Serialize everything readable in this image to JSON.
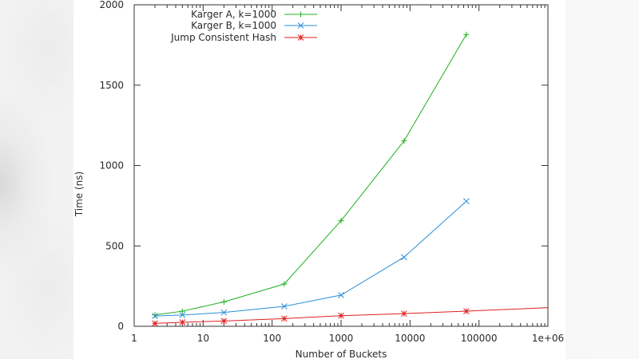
{
  "chart_data": {
    "type": "line",
    "title": "",
    "xlabel": "Number of Buckets",
    "ylabel": "Time (ns)",
    "xscale": "log",
    "xlim": [
      1,
      1000000
    ],
    "ylim": [
      0,
      2000
    ],
    "x_tick_labels": [
      "1",
      "10",
      "100",
      "1000",
      "10000",
      "100000",
      "1e+06"
    ],
    "x_tick_values": [
      1,
      10,
      100,
      1000,
      10000,
      100000,
      1000000
    ],
    "y_tick_labels": [
      "0",
      "500",
      "1000",
      "1500",
      "2000"
    ],
    "y_tick_values": [
      0,
      500,
      1000,
      1500,
      2000
    ],
    "grid": false,
    "legend_position": "top-left (inside)",
    "series": [
      {
        "name": "Karger A, k=1000",
        "color": "#1fb01f",
        "marker": "plus",
        "x": [
          2,
          5,
          20,
          150,
          1000,
          8192,
          65536
        ],
        "values": [
          71,
          94,
          152,
          263,
          657,
          1153,
          1815
        ]
      },
      {
        "name": "Karger B, k=1000",
        "color": "#2a8fd8",
        "marker": "cross",
        "x": [
          2,
          5,
          20,
          150,
          1000,
          8192,
          65536
        ],
        "values": [
          64,
          70,
          86,
          124,
          194,
          430,
          778
        ]
      },
      {
        "name": "Jump Consistent Hash",
        "color": "#e02020",
        "marker": "star",
        "x": [
          2,
          5,
          20,
          150,
          1000,
          8192,
          65536
        ],
        "values": [
          18,
          25,
          33,
          48,
          66,
          79,
          94
        ],
        "line_extends_to": [
          1000000,
          116
        ]
      }
    ]
  }
}
